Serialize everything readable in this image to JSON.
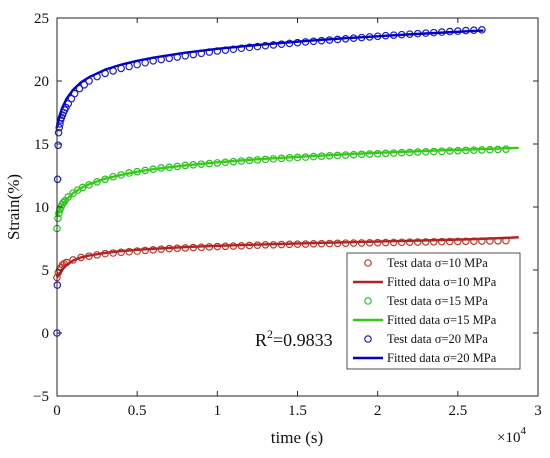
{
  "chart_data": {
    "type": "scatter",
    "xlabel": "time (s)",
    "ylabel": "Strain(%)",
    "x_exponent_label": "×10",
    "x_exponent_power": "4",
    "xlim": [
      0,
      30000
    ],
    "ylim": [
      -5,
      25
    ],
    "x_ticks": [
      0,
      5000,
      10000,
      15000,
      20000,
      25000,
      30000
    ],
    "x_tick_labels": [
      "0",
      "0.5",
      "1",
      "1.5",
      "2",
      "2.5",
      "3"
    ],
    "y_ticks": [
      -5,
      0,
      5,
      10,
      15,
      20,
      25
    ],
    "y_tick_labels": [
      "−5",
      "0",
      "5",
      "10",
      "15",
      "20",
      "25"
    ],
    "grid": false,
    "legend_position": "bottom-right",
    "annotation": {
      "base": "R",
      "sup": "2",
      "value": "=0.9833"
    },
    "series": [
      {
        "name": "Test data σ=10 MPa",
        "kind": "markers",
        "color": "#c0392b",
        "x": [
          0,
          80,
          160,
          250,
          350,
          450,
          600,
          1000,
          1500,
          2000,
          2500,
          3000,
          3500,
          4000,
          4500,
          5000,
          5500,
          6000,
          6500,
          7000,
          7500,
          8000,
          8500,
          9000,
          9500,
          10000,
          10500,
          11000,
          11500,
          12000,
          12500,
          13000,
          13500,
          14000,
          14500,
          15000,
          15500,
          16000,
          16500,
          17000,
          17500,
          18000,
          18500,
          19000,
          19500,
          20000,
          20500,
          21000,
          21500,
          22000,
          22500,
          23000,
          23500,
          24000,
          24500,
          25000,
          25500,
          26000,
          26500,
          27000,
          27500,
          28000
        ],
        "y": [
          4.4,
          4.8,
          5.0,
          5.2,
          5.4,
          5.5,
          5.6,
          5.8,
          6.0,
          6.1,
          6.2,
          6.3,
          6.35,
          6.4,
          6.45,
          6.5,
          6.55,
          6.6,
          6.65,
          6.7,
          6.72,
          6.75,
          6.78,
          6.8,
          6.83,
          6.86,
          6.88,
          6.9,
          6.92,
          6.95,
          6.97,
          7.0,
          7.0,
          7.02,
          7.04,
          7.05,
          7.06,
          7.08,
          7.09,
          7.1,
          7.12,
          7.13,
          7.14,
          7.15,
          7.16,
          7.17,
          7.18,
          7.19,
          7.2,
          7.21,
          7.22,
          7.23,
          7.24,
          7.25,
          7.26,
          7.27,
          7.28,
          7.29,
          7.3,
          7.31,
          7.32,
          7.33
        ]
      },
      {
        "name": "Fitted data σ=10 MPa",
        "kind": "line",
        "color": "#b22222",
        "x": [
          0,
          100,
          300,
          600,
          1000,
          1500,
          2000,
          3000,
          4000,
          5000,
          6000,
          7000,
          8000,
          10000,
          12000,
          14000,
          16000,
          18000,
          20000,
          22000,
          24000,
          26000,
          28000,
          28800
        ],
        "y": [
          4.4,
          4.6,
          5.0,
          5.4,
          5.75,
          6.0,
          6.15,
          6.35,
          6.5,
          6.6,
          6.68,
          6.75,
          6.82,
          6.92,
          7.0,
          7.07,
          7.14,
          7.2,
          7.26,
          7.32,
          7.38,
          7.45,
          7.55,
          7.6
        ]
      },
      {
        "name": "Test data σ=15 MPa",
        "kind": "markers",
        "color": "#22c222",
        "x": [
          0,
          60,
          120,
          180,
          250,
          320,
          400,
          500,
          700,
          1000,
          1300,
          1600,
          2000,
          2500,
          3000,
          3500,
          4000,
          4500,
          5000,
          5500,
          6000,
          6500,
          7000,
          7500,
          8000,
          8500,
          9000,
          9500,
          10000,
          10500,
          11000,
          11500,
          12000,
          12500,
          13000,
          13500,
          14000,
          14500,
          15000,
          15500,
          16000,
          16500,
          17000,
          17500,
          18000,
          18500,
          19000,
          19500,
          20000,
          20500,
          21000,
          21500,
          22000,
          22500,
          23000,
          23500,
          24000,
          24500,
          25000,
          25500,
          26000,
          26500,
          27000,
          27500,
          28000
        ],
        "y": [
          8.3,
          9.1,
          9.5,
          9.8,
          10.0,
          10.2,
          10.35,
          10.5,
          10.8,
          11.1,
          11.35,
          11.55,
          11.75,
          12.0,
          12.2,
          12.4,
          12.55,
          12.7,
          12.8,
          12.9,
          13.0,
          13.1,
          13.15,
          13.22,
          13.3,
          13.35,
          13.4,
          13.45,
          13.5,
          13.55,
          13.6,
          13.65,
          13.7,
          13.74,
          13.78,
          13.82,
          13.86,
          13.9,
          13.93,
          13.96,
          14.0,
          14.03,
          14.06,
          14.09,
          14.12,
          14.15,
          14.18,
          14.2,
          14.23,
          14.26,
          14.28,
          14.31,
          14.33,
          14.36,
          14.38,
          14.4,
          14.42,
          14.45,
          14.47,
          14.49,
          14.51,
          14.53,
          14.55,
          14.57,
          14.59
        ]
      },
      {
        "name": "Fitted data σ=15 MPa",
        "kind": "line",
        "color": "#33cc11",
        "x": [
          0,
          100,
          300,
          600,
          1000,
          1500,
          2000,
          3000,
          4000,
          5000,
          6000,
          7000,
          8000,
          10000,
          12000,
          14000,
          16000,
          18000,
          20000,
          22000,
          24000,
          26000,
          28000,
          28800
        ],
        "y": [
          9.2,
          9.6,
          10.1,
          10.6,
          11.1,
          11.5,
          11.8,
          12.25,
          12.55,
          12.8,
          13.0,
          13.15,
          13.3,
          13.55,
          13.75,
          13.9,
          14.05,
          14.18,
          14.3,
          14.4,
          14.5,
          14.58,
          14.66,
          14.7
        ]
      },
      {
        "name": "Test data σ=20 MPa",
        "kind": "markers",
        "color": "#1a1acc",
        "x": [
          0,
          20,
          40,
          70,
          100,
          140,
          180,
          230,
          280,
          340,
          400,
          480,
          560,
          700,
          900,
          1100,
          1400,
          1700,
          2000,
          2500,
          3000,
          3500,
          4000,
          4500,
          5000,
          5500,
          6000,
          6500,
          7000,
          7500,
          8000,
          8500,
          9000,
          9500,
          10000,
          10500,
          11000,
          11500,
          12000,
          12500,
          13000,
          13500,
          14000,
          14500,
          15000,
          15500,
          16000,
          16500,
          17000,
          17500,
          18000,
          18500,
          19000,
          19500,
          20000,
          20500,
          21000,
          21500,
          22000,
          22500,
          23000,
          23500,
          24000,
          24500,
          25000,
          25500,
          26000,
          26500
        ],
        "y": [
          0.0,
          3.8,
          12.2,
          14.9,
          15.9,
          16.3,
          16.6,
          16.9,
          17.1,
          17.3,
          17.5,
          17.7,
          17.9,
          18.2,
          18.6,
          19.0,
          19.4,
          19.7,
          20.0,
          20.35,
          20.6,
          20.8,
          21.0,
          21.15,
          21.3,
          21.45,
          21.6,
          21.7,
          21.8,
          21.9,
          22.0,
          22.1,
          22.2,
          22.3,
          22.38,
          22.45,
          22.52,
          22.6,
          22.67,
          22.73,
          22.8,
          22.86,
          22.92,
          22.98,
          23.04,
          23.1,
          23.15,
          23.2,
          23.25,
          23.3,
          23.35,
          23.4,
          23.45,
          23.5,
          23.55,
          23.6,
          23.64,
          23.68,
          23.72,
          23.76,
          23.8,
          23.84,
          23.88,
          23.92,
          23.96,
          24.0,
          24.03,
          24.06
        ]
      },
      {
        "name": "Fitted data σ=20 MPa",
        "kind": "line",
        "color": "#0000cc",
        "x": [
          0,
          100,
          300,
          600,
          1000,
          1500,
          2000,
          3000,
          4000,
          5000,
          6000,
          7000,
          8000,
          10000,
          12000,
          14000,
          16000,
          18000,
          20000,
          22000,
          24000,
          26000,
          26600
        ],
        "y": [
          16.3,
          16.9,
          17.8,
          18.6,
          19.3,
          19.9,
          20.3,
          20.9,
          21.3,
          21.6,
          21.85,
          22.05,
          22.25,
          22.55,
          22.8,
          23.02,
          23.22,
          23.4,
          23.55,
          23.7,
          23.84,
          23.97,
          24.0
        ]
      }
    ]
  }
}
